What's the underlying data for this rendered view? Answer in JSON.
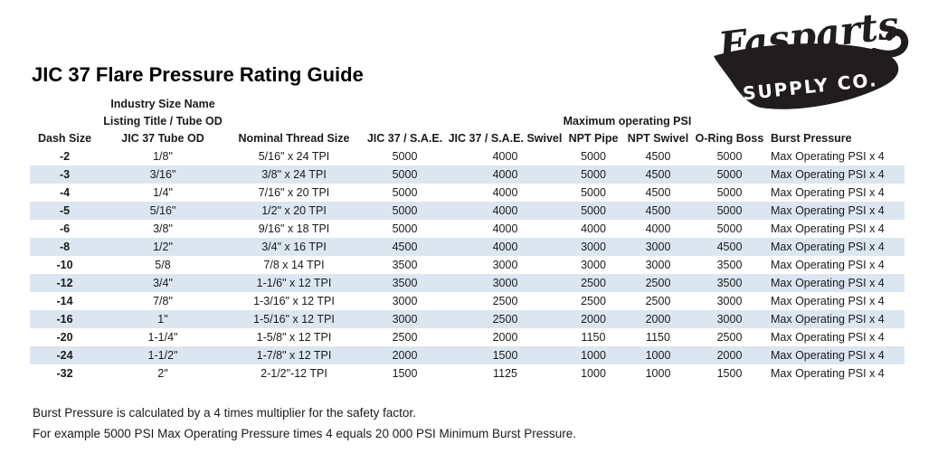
{
  "page": {
    "title": "JIC 37 Flare Pressure Rating Guide"
  },
  "logo": {
    "name": "Fasparts",
    "subtitle": "SUPPLY CO.",
    "color": "#211d1e"
  },
  "table": {
    "header": {
      "industry_line1": "Industry Size Name",
      "industry_line2": "Listing Title / Tube OD",
      "psi_group": "Maximum operating PSI",
      "columns": [
        "Dash Size",
        "JIC 37 Tube OD",
        "Nominal Thread Size",
        "JIC 37 / S.A.E.",
        "JIC 37 / S.A.E. Swivel",
        "NPT Pipe",
        "NPT Swivel",
        "O-Ring Boss",
        "Burst Pressure"
      ]
    },
    "rows": [
      [
        "-2",
        "1/8\"",
        "5/16\" x 24 TPI",
        "5000",
        "4000",
        "5000",
        "4500",
        "5000",
        "Max Operating PSI x 4"
      ],
      [
        "-3",
        "3/16\"",
        "3/8\" x 24 TPI",
        "5000",
        "4000",
        "5000",
        "4500",
        "5000",
        "Max Operating PSI x 4"
      ],
      [
        "-4",
        "1/4\"",
        "7/16\" x 20 TPI",
        "5000",
        "4000",
        "5000",
        "4500",
        "5000",
        "Max Operating PSI x 4"
      ],
      [
        "-5",
        "5/16\"",
        "1/2\" x 20 TPI",
        "5000",
        "4000",
        "5000",
        "4500",
        "5000",
        "Max Operating PSI x 4"
      ],
      [
        "-6",
        "3/8\"",
        "9/16\" x 18 TPI",
        "5000",
        "4000",
        "4000",
        "4000",
        "5000",
        "Max Operating PSI x 4"
      ],
      [
        "-8",
        "1/2\"",
        "3/4\" x 16 TPI",
        "4500",
        "4000",
        "3000",
        "3000",
        "4500",
        "Max Operating PSI x 4"
      ],
      [
        "-10",
        "5/8",
        "7/8 x 14 TPI",
        "3500",
        "3000",
        "3000",
        "3000",
        "3500",
        "Max Operating PSI x 4"
      ],
      [
        "-12",
        "3/4\"",
        "1-1/6\" x 12 TPI",
        "3500",
        "3000",
        "2500",
        "2500",
        "3500",
        "Max Operating PSI x 4"
      ],
      [
        "-14",
        "7/8\"",
        "1-3/16\" x 12 TPI",
        "3000",
        "2500",
        "2500",
        "2500",
        "3000",
        "Max Operating PSI x 4"
      ],
      [
        "-16",
        "1\"",
        "1-5/16\" x 12 TPI",
        "3000",
        "2500",
        "2000",
        "2000",
        "3000",
        "Max Operating PSI x 4"
      ],
      [
        "-20",
        "1-1/4\"",
        "1-5/8\" x 12 TPI",
        "2500",
        "2000",
        "1150",
        "1150",
        "2500",
        "Max Operating PSI x 4"
      ],
      [
        "-24",
        "1-1/2\"",
        "1-7/8\" x 12 TPI",
        "2000",
        "1500",
        "1000",
        "1000",
        "2000",
        "Max Operating PSI x 4"
      ],
      [
        "-32",
        "2\"",
        "2-1/2\"-12 TPI",
        "1500",
        "1125",
        "1000",
        "1000",
        "1500",
        "Max Operating PSI x 4"
      ]
    ],
    "stripe_color": "#dce6f1"
  },
  "notes": {
    "line1": "Burst Pressure is calculated by a 4 times multiplier for the safety factor.",
    "line2": "For example 5000 PSI Max Operating Pressure times 4 equals 20 000 PSI Minimum Burst Pressure."
  }
}
